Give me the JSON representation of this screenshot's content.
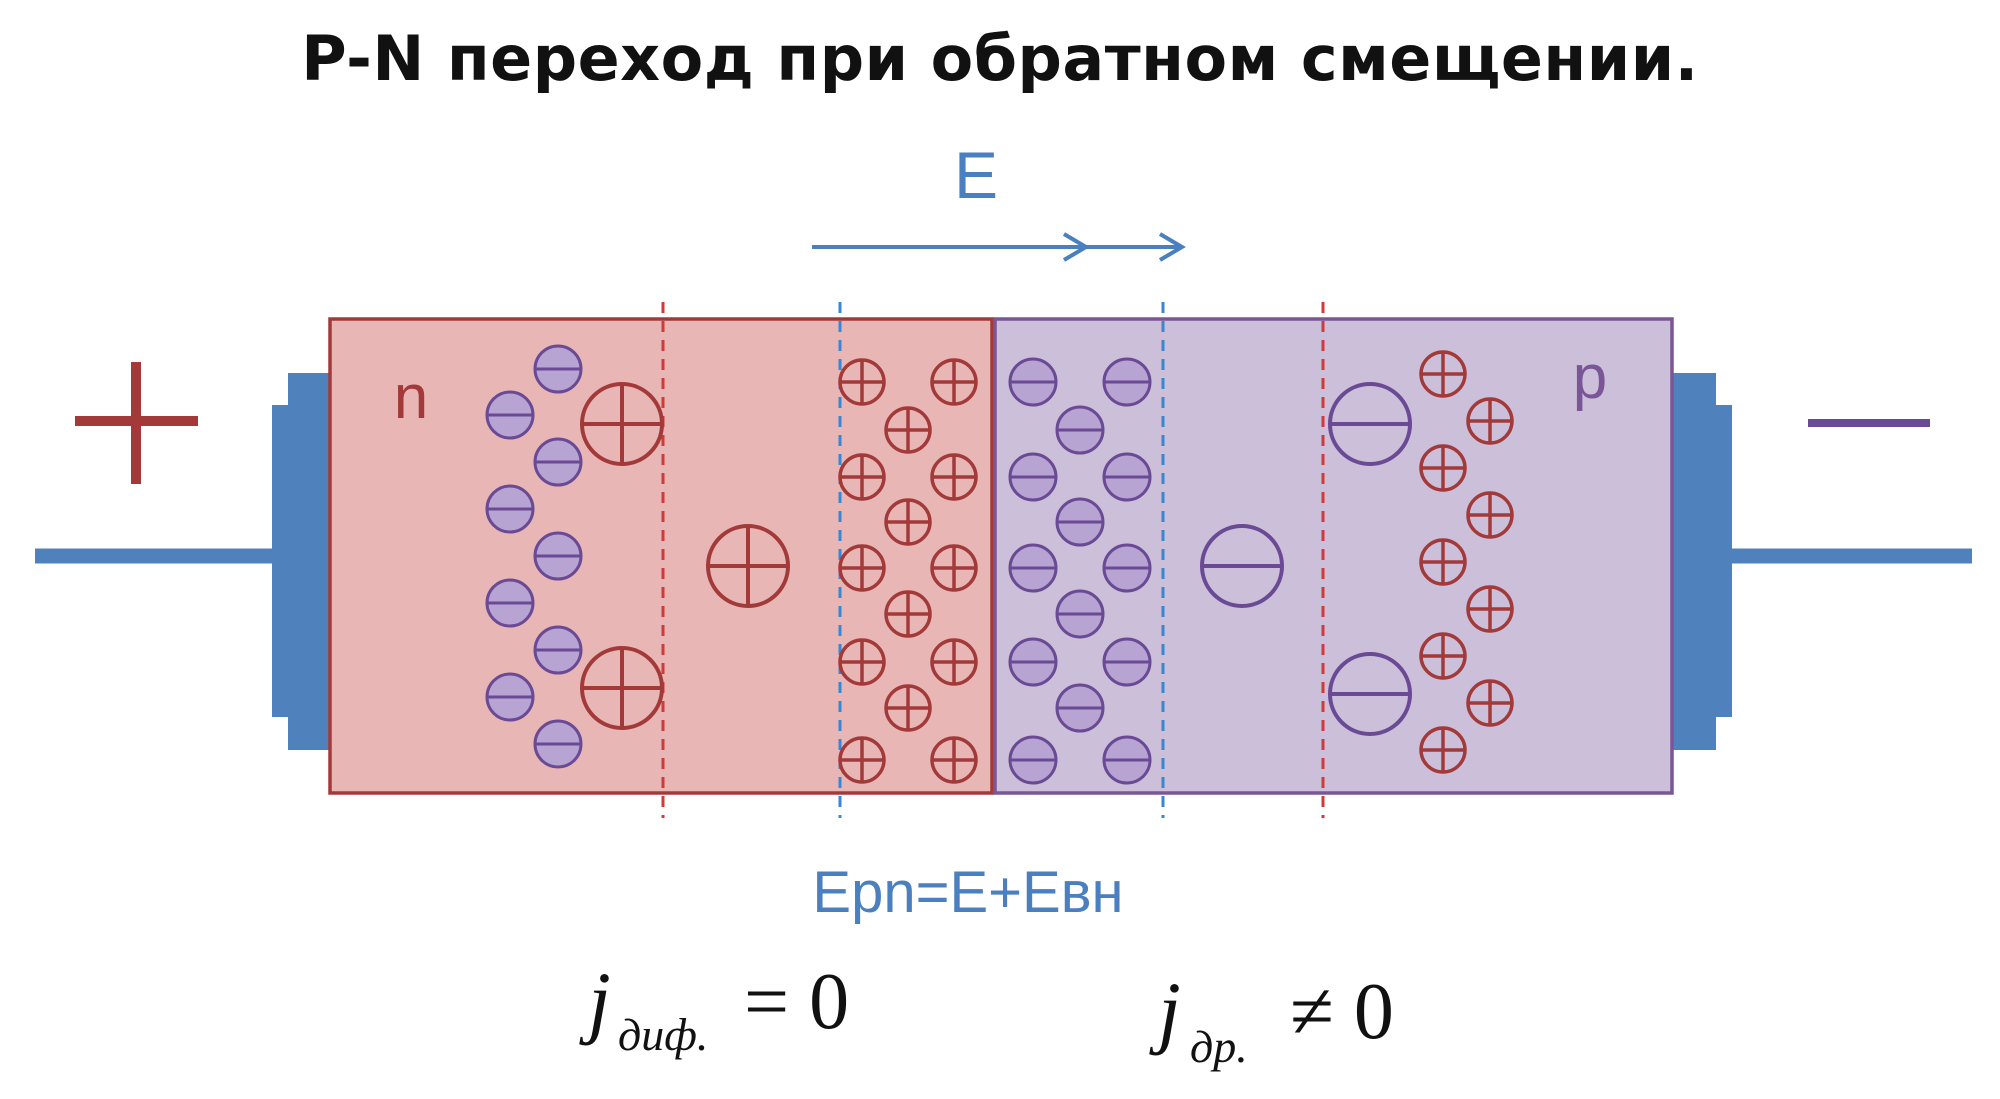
{
  "title": "P-N переход при обратном смещении.",
  "labels": {
    "plus_sign": "+",
    "minus_sign": "—",
    "e_field": "E",
    "n_region": "n",
    "p_region": "p",
    "epn_formula": "Epn=E+Eвн",
    "j_diff_symbol": "j",
    "j_diff_sub": "диф.",
    "j_diff_rel": "= 0",
    "j_drift_symbol": "j",
    "j_drift_sub": "др.",
    "j_drift_rel": "≠ 0"
  },
  "colors": {
    "n_fill": "#e9b6b6",
    "n_stroke": "#a33a3a",
    "p_fill": "#cbbfd9",
    "p_stroke": "#7a5696",
    "electrode": "#4f81bd",
    "field_blue": "#4a7fc0",
    "electron_fill": "#b7a4d2",
    "electron_stroke": "#6a4a94",
    "ion_stroke": "#a33a3a",
    "minus_purple": "#6a4a94"
  }
}
